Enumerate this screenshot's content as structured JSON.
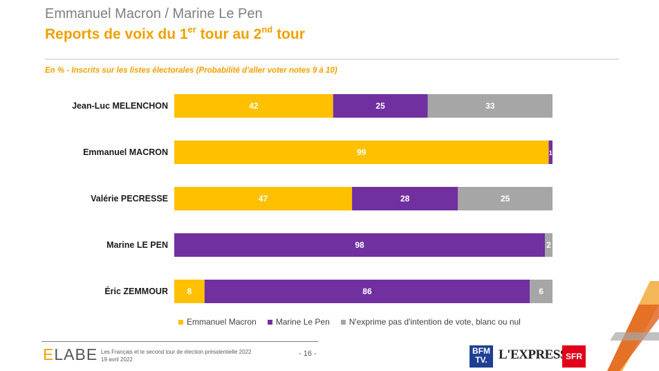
{
  "header": {
    "super_title": "Emmanuel Macron / Marine Le Pen",
    "title_part1": "Reports de voix du 1",
    "title_sup1": "er",
    "title_part2": " tour au 2",
    "title_sup2": "nd",
    "title_part3": " tour",
    "subtitle": "En % - Inscrits sur les listes électorales (Probabilité d'aller voter notes 9 à 10)"
  },
  "chart_data": {
    "type": "bar",
    "orientation": "horizontal",
    "stacked": true,
    "categories": [
      "Jean-Luc MELENCHON",
      "Emmanuel MACRON",
      "Valérie PECRESSE",
      "Marine LE PEN",
      "Éric ZEMMOUR"
    ],
    "series": [
      {
        "name": "Emmanuel Macron",
        "color": "#ffc000",
        "values": [
          42,
          99,
          47,
          0,
          8
        ]
      },
      {
        "name": "Marine Le Pen",
        "color": "#7030a0",
        "values": [
          25,
          1,
          28,
          98,
          86
        ]
      },
      {
        "name": "N'exprime pas d'intention de vote, blanc ou nul",
        "color": "#a6a6a6",
        "values": [
          33,
          0,
          25,
          2,
          6
        ]
      }
    ],
    "xlim": [
      0,
      100
    ],
    "legend": "bottom"
  },
  "footer": {
    "logo_e": "E",
    "logo_rest": "LABE",
    "line1": "Les Français et le second tour de élection présidentielle 2022",
    "line2": "19 avril 2022",
    "page": "- 16 -",
    "bfm_line1": "BFM",
    "bfm_line2": "TV.",
    "express": "L'EXPRESS",
    "sfr": "SFR"
  },
  "colors": {
    "accent": "#f0a000",
    "macron": "#ffc000",
    "lepen": "#7030a0",
    "neutral": "#a6a6a6"
  }
}
